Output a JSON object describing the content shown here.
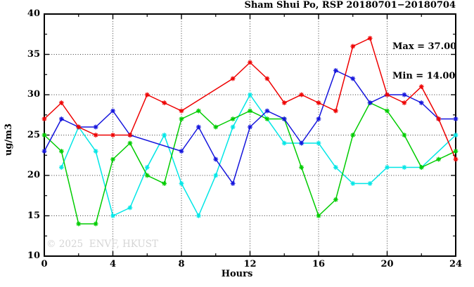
{
  "watermark": "© 2025  ENVF, HKUST",
  "legend": {
    "max_label": "Max = 37.00",
    "min_label": "Min = 14.00"
  },
  "chart_data": {
    "type": "line",
    "title": "Sham Shui Po, RSP 20180701−20180704",
    "xlabel": "Hours",
    "ylabel": "ug/m3",
    "xlim": [
      0,
      24
    ],
    "ylim": [
      10,
      40
    ],
    "x_ticks": [
      0,
      4,
      8,
      12,
      16,
      20,
      24
    ],
    "x_minor_ticks": [
      2,
      6,
      10,
      14,
      18,
      22
    ],
    "y_ticks": [
      10,
      15,
      20,
      25,
      30,
      35,
      40
    ],
    "y_minor_ticks": [
      12.5,
      17.5,
      22.5,
      27.5,
      32.5,
      37.5
    ],
    "grid": {
      "x_lines": [
        4,
        8,
        12,
        16,
        20
      ],
      "y_lines": [
        15,
        20,
        25,
        30,
        35
      ]
    },
    "legend_position": "top-right-inside",
    "stats": {
      "max": 37.0,
      "min": 14.0
    },
    "x": [
      0,
      1,
      2,
      3,
      4,
      5,
      6,
      7,
      8,
      9,
      10,
      11,
      12,
      13,
      14,
      15,
      16,
      17,
      18,
      19,
      20,
      21,
      22,
      23,
      24
    ],
    "series": [
      {
        "name": "cyan",
        "color": "#00e6e6",
        "values": [
          null,
          21,
          26,
          23,
          15,
          16,
          21,
          25,
          19,
          15,
          20,
          26,
          30,
          null,
          24,
          24,
          24,
          21,
          19,
          19,
          21,
          21,
          21,
          null,
          25
        ]
      },
      {
        "name": "green",
        "color": "#00cc00",
        "values": [
          25,
          23,
          14,
          14,
          22,
          24,
          20,
          19,
          27,
          28,
          26,
          27,
          28,
          27,
          27,
          21,
          15,
          17,
          25,
          29,
          28,
          25,
          21,
          22,
          23
        ]
      },
      {
        "name": "blue",
        "color": "#1515dd",
        "values": [
          23,
          27,
          26,
          26,
          28,
          25,
          null,
          null,
          23,
          26,
          22,
          19,
          26,
          28,
          27,
          24,
          27,
          33,
          32,
          29,
          30,
          30,
          29,
          27,
          27
        ]
      },
      {
        "name": "red",
        "color": "#ee0000",
        "values": [
          27,
          29,
          26,
          25,
          25,
          25,
          30,
          29,
          28,
          null,
          null,
          32,
          34,
          32,
          29,
          30,
          29,
          28,
          36,
          37,
          30,
          29,
          31,
          27,
          22
        ]
      }
    ]
  }
}
